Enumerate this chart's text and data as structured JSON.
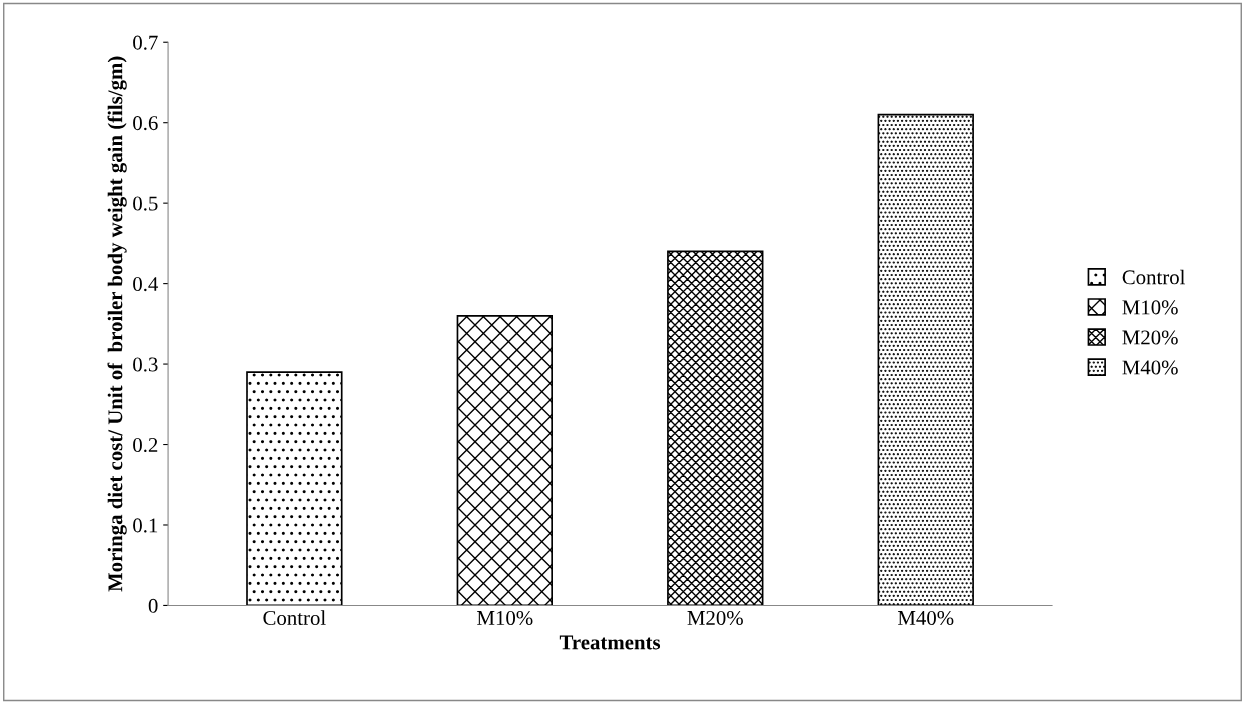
{
  "chart_data": {
    "type": "bar",
    "xlabel": "Treatments",
    "ylabel": "Moringa diet cost/ Unit of  broiler body weight gain (fils/gm)",
    "categories": [
      "Control",
      "M10%",
      "M20%",
      "M40%"
    ],
    "series": [
      {
        "name": "Control",
        "color": "#000000",
        "values": [
          0.29,
          null,
          null,
          null
        ]
      },
      {
        "name": "M10%",
        "color": "#000000",
        "values": [
          null,
          0.36,
          null,
          null
        ]
      },
      {
        "name": "M20%",
        "color": "#000000",
        "values": [
          null,
          null,
          0.44,
          null
        ]
      },
      {
        "name": "M40%",
        "color": "#000000",
        "values": [
          null,
          null,
          null,
          0.61
        ]
      }
    ],
    "ylim": [
      0,
      0.7
    ],
    "yticks": [
      0,
      0.1,
      0.2,
      0.3,
      0.4,
      0.5,
      0.6,
      0.7
    ],
    "grid": false,
    "legend": "right"
  }
}
